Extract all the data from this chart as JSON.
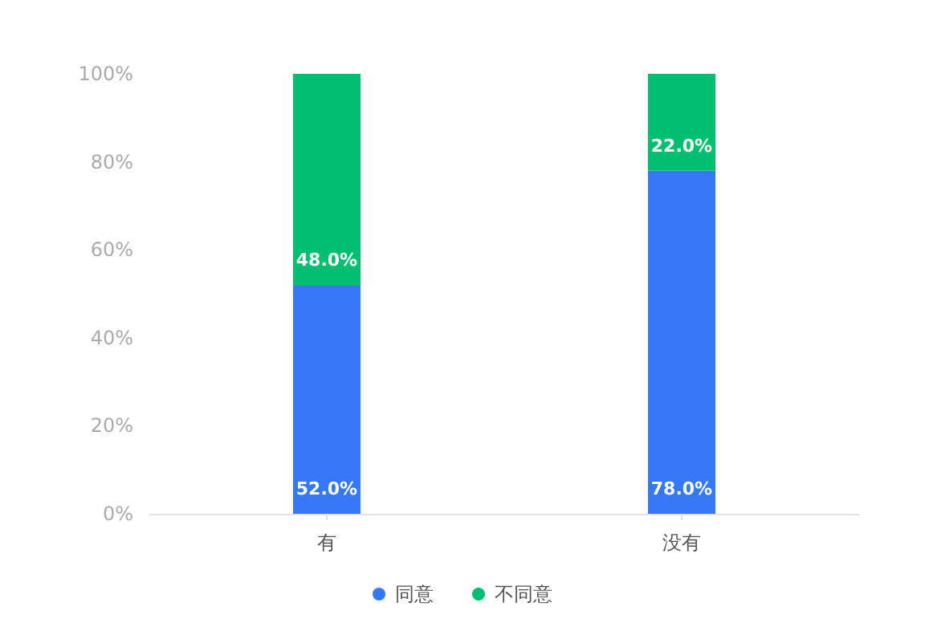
{
  "chart_data": {
    "type": "bar",
    "stacked": true,
    "categories": [
      "有",
      "没有"
    ],
    "series": [
      {
        "name": "同意",
        "color": "#3478f6",
        "values": [
          52,
          78
        ],
        "value_labels": [
          "52.0%",
          "78.0%"
        ]
      },
      {
        "name": "不同意",
        "color": "#00bf6f",
        "values": [
          48,
          22
        ],
        "value_labels": [
          "48.0%",
          "22.0%"
        ]
      }
    ],
    "ylim": [
      0,
      100
    ],
    "yticks": [
      {
        "value": 0,
        "label": "0%"
      },
      {
        "value": 20,
        "label": "20%"
      },
      {
        "value": 40,
        "label": "40%"
      },
      {
        "value": 60,
        "label": "60%"
      },
      {
        "value": 80,
        "label": "80%"
      },
      {
        "value": 100,
        "label": "100%"
      }
    ],
    "legend": "bottom"
  }
}
